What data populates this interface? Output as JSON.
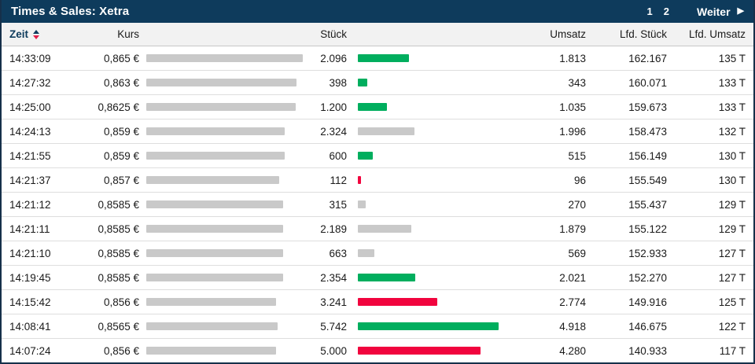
{
  "header": {
    "title": "Times & Sales: Xetra",
    "pages": [
      "1",
      "2"
    ],
    "next_label": "Weiter",
    "next_arrow": "▶"
  },
  "columns": {
    "zeit": "Zeit",
    "kurs": "Kurs",
    "stueck": "Stück",
    "umsatz": "Umsatz",
    "lfd_stueck": "Lfd. Stück",
    "lfd_umsatz": "Lfd. Umsatz"
  },
  "colors": {
    "navy": "#0e3b5c",
    "up": "#00ae5e",
    "down": "#f1043e",
    "neutral": "#c9c9c9"
  },
  "bars": {
    "kurs_range": [
      0.856,
      0.865
    ],
    "stueck_max": 5742
  },
  "rows": [
    {
      "zeit": "14:33:09",
      "kurs": "0,865 €",
      "kurs_value": 0.865,
      "stueck": "2.096",
      "stueck_value": 2096,
      "direction": "up",
      "umsatz": "1.813",
      "lfd_stueck": "162.167",
      "lfd_umsatz": "135 T"
    },
    {
      "zeit": "14:27:32",
      "kurs": "0,863 €",
      "kurs_value": 0.863,
      "stueck": "398",
      "stueck_value": 398,
      "direction": "up",
      "umsatz": "343",
      "lfd_stueck": "160.071",
      "lfd_umsatz": "133 T"
    },
    {
      "zeit": "14:25:00",
      "kurs": "0,8625 €",
      "kurs_value": 0.8625,
      "stueck": "1.200",
      "stueck_value": 1200,
      "direction": "up",
      "umsatz": "1.035",
      "lfd_stueck": "159.673",
      "lfd_umsatz": "133 T"
    },
    {
      "zeit": "14:24:13",
      "kurs": "0,859 €",
      "kurs_value": 0.859,
      "stueck": "2.324",
      "stueck_value": 2324,
      "direction": "neutral",
      "umsatz": "1.996",
      "lfd_stueck": "158.473",
      "lfd_umsatz": "132 T"
    },
    {
      "zeit": "14:21:55",
      "kurs": "0,859 €",
      "kurs_value": 0.859,
      "stueck": "600",
      "stueck_value": 600,
      "direction": "up",
      "umsatz": "515",
      "lfd_stueck": "156.149",
      "lfd_umsatz": "130 T"
    },
    {
      "zeit": "14:21:37",
      "kurs": "0,857 €",
      "kurs_value": 0.857,
      "stueck": "112",
      "stueck_value": 112,
      "direction": "down",
      "umsatz": "96",
      "lfd_stueck": "155.549",
      "lfd_umsatz": "130 T"
    },
    {
      "zeit": "14:21:12",
      "kurs": "0,8585 €",
      "kurs_value": 0.8585,
      "stueck": "315",
      "stueck_value": 315,
      "direction": "neutral",
      "umsatz": "270",
      "lfd_stueck": "155.437",
      "lfd_umsatz": "129 T"
    },
    {
      "zeit": "14:21:11",
      "kurs": "0,8585 €",
      "kurs_value": 0.8585,
      "stueck": "2.189",
      "stueck_value": 2189,
      "direction": "neutral",
      "umsatz": "1.879",
      "lfd_stueck": "155.122",
      "lfd_umsatz": "129 T"
    },
    {
      "zeit": "14:21:10",
      "kurs": "0,8585 €",
      "kurs_value": 0.8585,
      "stueck": "663",
      "stueck_value": 663,
      "direction": "neutral",
      "umsatz": "569",
      "lfd_stueck": "152.933",
      "lfd_umsatz": "127 T"
    },
    {
      "zeit": "14:19:45",
      "kurs": "0,8585 €",
      "kurs_value": 0.8585,
      "stueck": "2.354",
      "stueck_value": 2354,
      "direction": "up",
      "umsatz": "2.021",
      "lfd_stueck": "152.270",
      "lfd_umsatz": "127 T"
    },
    {
      "zeit": "14:15:42",
      "kurs": "0,856 €",
      "kurs_value": 0.856,
      "stueck": "3.241",
      "stueck_value": 3241,
      "direction": "down",
      "umsatz": "2.774",
      "lfd_stueck": "149.916",
      "lfd_umsatz": "125 T"
    },
    {
      "zeit": "14:08:41",
      "kurs": "0,8565 €",
      "kurs_value": 0.8565,
      "stueck": "5.742",
      "stueck_value": 5742,
      "direction": "up",
      "umsatz": "4.918",
      "lfd_stueck": "146.675",
      "lfd_umsatz": "122 T"
    },
    {
      "zeit": "14:07:24",
      "kurs": "0,856 €",
      "kurs_value": 0.856,
      "stueck": "5.000",
      "stueck_value": 5000,
      "direction": "down",
      "umsatz": "4.280",
      "lfd_stueck": "140.933",
      "lfd_umsatz": "117 T"
    }
  ]
}
